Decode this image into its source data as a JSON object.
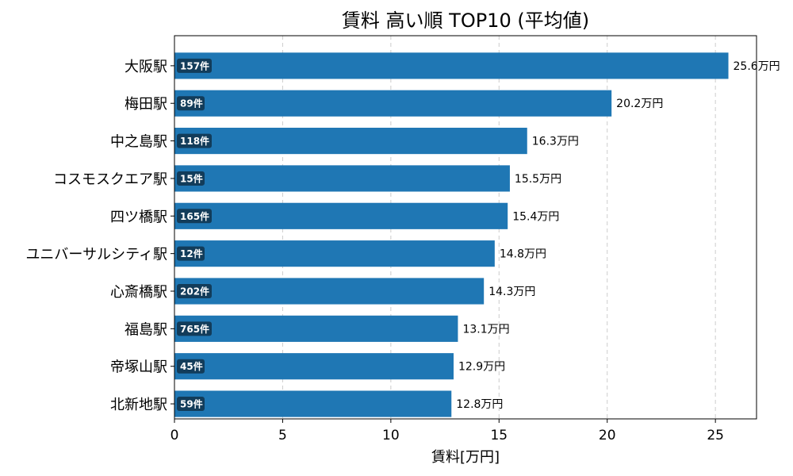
{
  "chart_data": {
    "type": "bar",
    "orientation": "horizontal",
    "title": "賃料 高い順 TOP10 (平均値)",
    "xlabel": "賃料[万円]",
    "ylabel": "",
    "xlim": [
      0,
      26.9
    ],
    "xticks": [
      0,
      5,
      10,
      15,
      20,
      25
    ],
    "grid": "x-dashed",
    "categories": [
      "大阪駅",
      "梅田駅",
      "中之島駅",
      "コスモスクエア駅",
      "四ツ橋駅",
      "ユニバーサルシティ駅",
      "心斎橋駅",
      "福島駅",
      "帝塚山駅",
      "北新地駅"
    ],
    "values": [
      25.6,
      20.2,
      16.3,
      15.5,
      15.4,
      14.8,
      14.3,
      13.1,
      12.9,
      12.8
    ],
    "value_labels": [
      "25.6万円",
      "20.2万円",
      "16.3万円",
      "15.5万円",
      "15.4万円",
      "14.8万円",
      "14.3万円",
      "13.1万円",
      "12.9万円",
      "12.8万円"
    ],
    "counts": [
      "157件",
      "89件",
      "118件",
      "15件",
      "165件",
      "12件",
      "202件",
      "765件",
      "45件",
      "59件"
    ],
    "bar_color": "#1f77b4",
    "count_badge_color": "#123c5a"
  }
}
